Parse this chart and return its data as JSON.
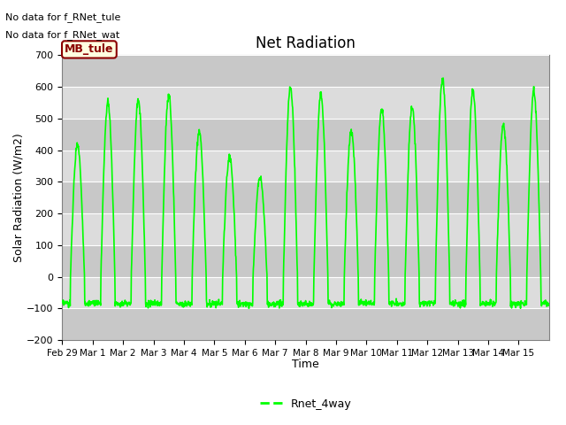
{
  "title": "Net Radiation",
  "xlabel": "Time",
  "ylabel": "Solar Radiation (W/m2)",
  "ylim": [
    -200,
    700
  ],
  "yticks": [
    -200,
    -100,
    0,
    100,
    200,
    300,
    400,
    500,
    600,
    700
  ],
  "line_color": "#00FF00",
  "line_width": 1.2,
  "legend_label": "Rnet_4way",
  "annotation1": "No data for f_RNet_tule",
  "annotation2": "No data for f_RNet_wat",
  "box_label": "MB_tule",
  "background_color": "#E8E8E8",
  "x_tick_labels": [
    "Feb 29",
    "Mar 1",
    "Mar 2",
    "Mar 3",
    "Mar 4",
    "Mar 5",
    "Mar 6",
    "Mar 7",
    "Mar 8",
    "Mar 9",
    "Mar 10",
    "Mar 11",
    "Mar 12",
    "Mar 13",
    "Mar 14",
    "Mar 15"
  ],
  "peaks": [
    420,
    550,
    560,
    575,
    460,
    380,
    315,
    600,
    575,
    460,
    530,
    535,
    625,
    590,
    480,
    585
  ]
}
